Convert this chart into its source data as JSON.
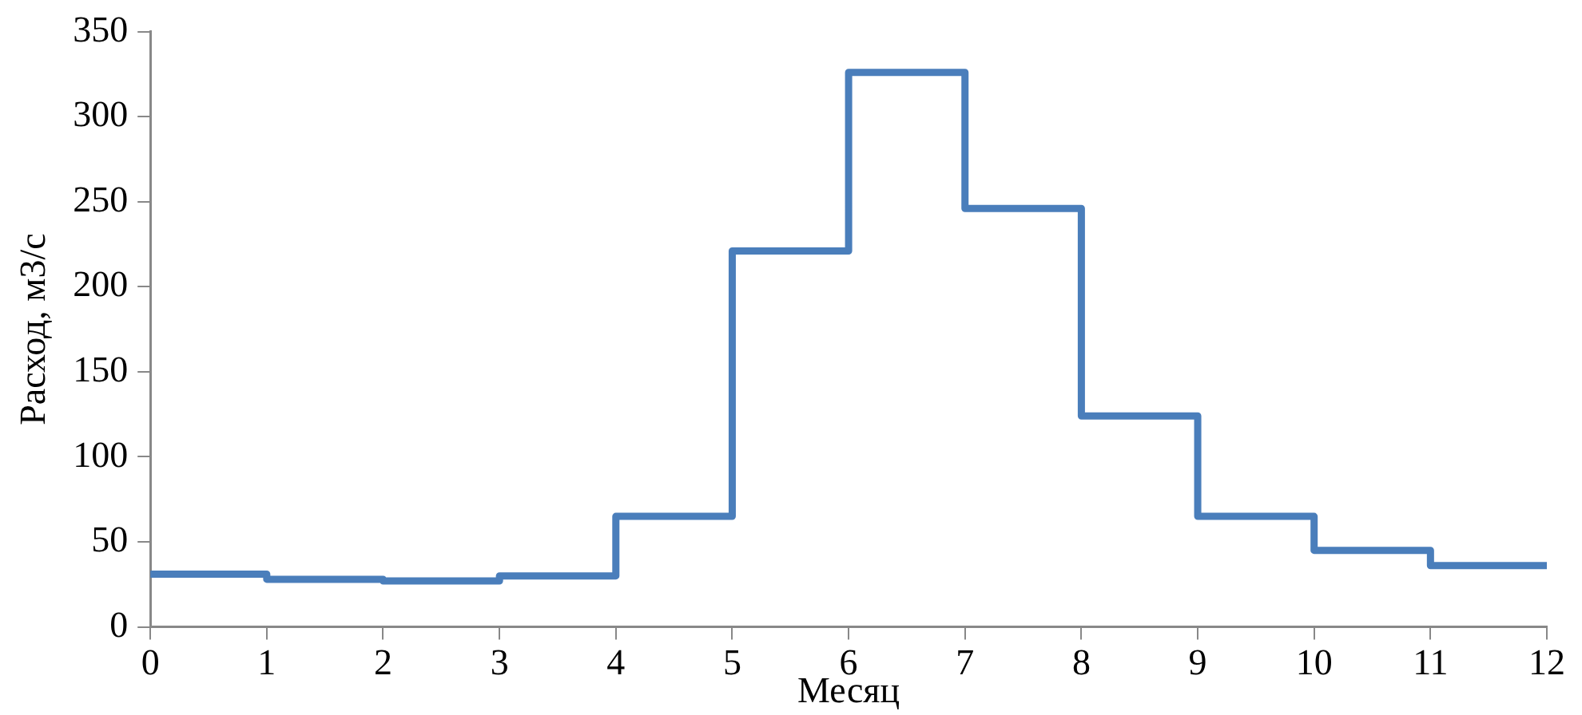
{
  "chart_data": {
    "type": "step",
    "xlabel": "Месяц",
    "ylabel": "Расход, м3/с",
    "x": [
      0,
      1,
      2,
      3,
      4,
      5,
      6,
      7,
      8,
      9,
      10,
      11,
      12
    ],
    "series": [
      {
        "color": "#4a7ebb",
        "values": [
          31,
          28,
          27,
          30,
          65,
          221,
          326,
          246,
          124,
          65,
          45,
          36,
          36
        ]
      }
    ],
    "xlim": [
      0,
      12
    ],
    "xticks": [
      0,
      1,
      2,
      3,
      4,
      5,
      6,
      7,
      8,
      9,
      10,
      11,
      12
    ],
    "ylim": [
      0,
      350
    ],
    "yticks": [
      0,
      50,
      100,
      150,
      200,
      250,
      300,
      350
    ],
    "grid": false,
    "legend": false,
    "marker": "none",
    "line_style": "solid"
  }
}
